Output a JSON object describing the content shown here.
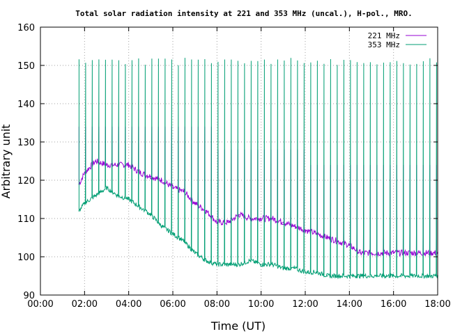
{
  "chart_data": {
    "type": "line",
    "title": "Total solar radiation intensity at 221 and 353 MHz (uncal.), H-pol., MRO.",
    "xlabel": "Time (UT)",
    "ylabel": "Arbitrary unit",
    "xlim": [
      "00:00",
      "18:00"
    ],
    "ylim": [
      90,
      160
    ],
    "x_ticks": [
      "00:00",
      "02:00",
      "04:00",
      "06:00",
      "08:00",
      "10:00",
      "12:00",
      "14:00",
      "16:00",
      "18:00"
    ],
    "y_ticks": [
      90,
      100,
      110,
      120,
      130,
      140,
      150,
      160
    ],
    "grid": true,
    "legend_position": "top-right",
    "series": [
      {
        "name": "221 MHz",
        "color": "#9400d3",
        "x": [
          "01:45",
          "02:00",
          "02:30",
          "03:00",
          "03:30",
          "04:00",
          "04:30",
          "05:00",
          "05:30",
          "06:00",
          "06:30",
          "07:00",
          "07:30",
          "08:00",
          "08:30",
          "09:00",
          "09:30",
          "10:00",
          "10:30",
          "11:00",
          "11:30",
          "12:00",
          "12:30",
          "13:00",
          "13:30",
          "14:00",
          "14:30",
          "15:00",
          "15:30",
          "16:00",
          "16:30",
          "17:00",
          "17:30",
          "18:00"
        ],
        "values": [
          119,
          122,
          125,
          124,
          124,
          124,
          122,
          121,
          120,
          118,
          117,
          114,
          112,
          109,
          109,
          111,
          110,
          110,
          110,
          109,
          108,
          107,
          106,
          105,
          104,
          103,
          101,
          101,
          101,
          101,
          101,
          101,
          101,
          101
        ]
      },
      {
        "name": "353 MHz",
        "color": "#009e73",
        "x": [
          "01:45",
          "02:00",
          "02:30",
          "03:00",
          "03:30",
          "04:00",
          "04:30",
          "05:00",
          "05:30",
          "06:00",
          "06:30",
          "07:00",
          "07:30",
          "08:00",
          "08:30",
          "09:00",
          "09:30",
          "10:00",
          "10:30",
          "11:00",
          "11:30",
          "12:00",
          "12:30",
          "13:00",
          "13:30",
          "14:00",
          "14:30",
          "15:00",
          "15:30",
          "16:00",
          "16:30",
          "17:00",
          "17:30",
          "18:00"
        ],
        "values": [
          112,
          114,
          116,
          118,
          116,
          115,
          113,
          111,
          108,
          106,
          104,
          101,
          99,
          98,
          98,
          98,
          99,
          98,
          98,
          97,
          97,
          96,
          96,
          95,
          95,
          95,
          95,
          95,
          95,
          95,
          95,
          95,
          95,
          95
        ]
      }
    ],
    "annotations": "Periodic calibration spikes on both series (221 MHz up to ~125-137, 353 MHz up to ~150-152)."
  }
}
